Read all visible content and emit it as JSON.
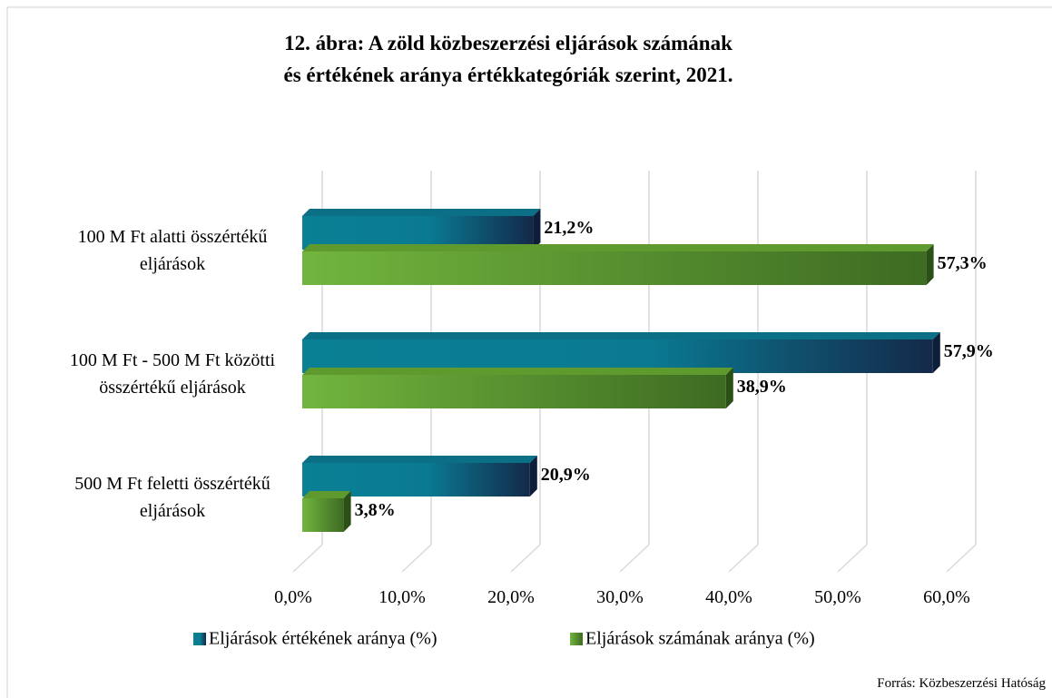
{
  "chart_data": {
    "type": "bar",
    "title": "12. ábra: A zöld közbeszerzési eljárások számának",
    "subtitle": "és értékének aránya értékkategóriák szerint, 2021.",
    "categories": [
      "100 M Ft alatti összértékű  eljárások",
      "100 M Ft - 500 M Ft közötti összértékű eljárások",
      "500 M Ft feletti összértékű eljárások"
    ],
    "series": [
      {
        "name": "Eljárások értékének aránya (%)",
        "color": "#0a8095",
        "values": [
          21.2,
          57.9,
          20.9
        ],
        "value_labels": [
          "21,2%",
          "57,9%",
          "20,9%"
        ]
      },
      {
        "name": "Eljárások számának aránya (%)",
        "color": "#6aaa3a",
        "values": [
          57.3,
          38.9,
          3.8
        ],
        "value_labels": [
          "57,3%",
          "38,9%",
          "3,8%"
        ]
      }
    ],
    "xlim": [
      0,
      60
    ],
    "xticks": [
      {
        "value": 0,
        "label": "0,0%"
      },
      {
        "value": 10,
        "label": "10,0%"
      },
      {
        "value": 20,
        "label": "20,0%"
      },
      {
        "value": 30,
        "label": "30,0%"
      },
      {
        "value": 40,
        "label": "40,0%"
      },
      {
        "value": 50,
        "label": "50,0%"
      },
      {
        "value": 60,
        "label": "60,0%"
      }
    ],
    "grid": true,
    "legend": "bottom",
    "source": "Forrás: Közbeszerzési Hatóság"
  }
}
